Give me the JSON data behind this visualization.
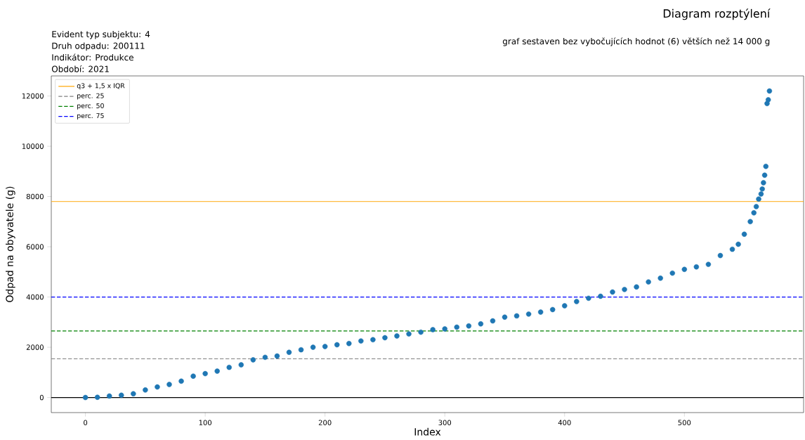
{
  "chart_data": {
    "type": "scatter",
    "title": "Diagram rozptýlení",
    "subtitle": "graf sestaven bez vybočujících hodnot (6)  větších než 14 000 g",
    "annotations": [
      "Evident typ subjektu:   4",
      "Druh odpadu:   200111",
      "Indikátor:   Produkce",
      "Období:   2021"
    ],
    "xlabel": "Index",
    "ylabel": "Odpad na obyvatele (g)",
    "x": [
      0,
      10,
      20,
      30,
      40,
      50,
      60,
      70,
      80,
      90,
      100,
      110,
      120,
      130,
      140,
      150,
      160,
      170,
      180,
      190,
      200,
      210,
      220,
      230,
      240,
      250,
      260,
      270,
      280,
      290,
      300,
      310,
      320,
      330,
      340,
      350,
      360,
      370,
      380,
      390,
      400,
      410,
      420,
      430,
      440,
      450,
      460,
      470,
      480,
      490,
      500,
      510,
      520,
      530,
      540,
      545,
      550,
      555,
      558,
      560,
      562,
      564,
      565,
      566,
      567,
      568,
      569,
      570,
      571
    ],
    "series": [
      {
        "color": "#1f77b4",
        "values": [
          0,
          10,
          60,
          90,
          150,
          300,
          420,
          520,
          650,
          850,
          950,
          1050,
          1200,
          1300,
          1500,
          1600,
          1650,
          1800,
          1900,
          2000,
          2030,
          2100,
          2150,
          2250,
          2300,
          2380,
          2450,
          2530,
          2600,
          2700,
          2730,
          2800,
          2850,
          2930,
          3050,
          3200,
          3250,
          3320,
          3400,
          3500,
          3650,
          3820,
          3950,
          4030,
          4200,
          4300,
          4400,
          4600,
          4750,
          4950,
          5100,
          5200,
          5300,
          5650,
          5900,
          6100,
          6500,
          7000,
          7350,
          7600,
          7900,
          8100,
          8300,
          8550,
          8850,
          9200,
          11700,
          11850,
          12200
        ]
      }
    ],
    "marker": "circle",
    "ref_lines": [
      {
        "axis": "y",
        "value": 7800,
        "label": "q3 + 1,5 x IQR",
        "color": "#ffa500",
        "line_style": "solid"
      },
      {
        "axis": "y",
        "value": 1540,
        "label": "perc. 25",
        "color": "#808080",
        "line_style": "dashed"
      },
      {
        "axis": "y",
        "value": 2650,
        "label": "perc. 50",
        "color": "#008000",
        "line_style": "dashed"
      },
      {
        "axis": "y",
        "value": 4000,
        "label": "perc. 75",
        "color": "#0000ff",
        "line_style": "dashed"
      },
      {
        "axis": "y",
        "value": 0,
        "color": "#000000",
        "line_style": "solid"
      }
    ],
    "xlim": [
      -28.5,
      599.5
    ],
    "ylim": [
      -600,
      12800
    ],
    "xticks": [
      0,
      100,
      200,
      300,
      400,
      500
    ],
    "yticks": [
      0,
      2000,
      4000,
      6000,
      8000,
      10000,
      12000
    ],
    "grid": false,
    "legend": "top left"
  }
}
